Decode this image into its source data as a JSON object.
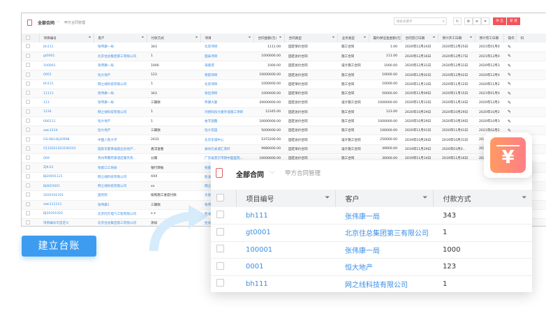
{
  "main": {
    "title": "全部合同",
    "subtitle": "甲方合同管理",
    "search_placeholder": "搜索关键字",
    "export_label": "导 出",
    "new_label": "新 建",
    "columns": [
      "项目编号",
      "客户",
      "付款方式",
      "项目",
      "合同金额(元)",
      "合同类型",
      "业务类型",
      "履约保证金金额(元)",
      "合同签订日期",
      "预计开工日期",
      "预计完工日期",
      "操作",
      "扫"
    ],
    "rows": [
      [
        "bh111",
        "张伟康一局",
        "343",
        "北装项目",
        "1111.00",
        "固定单价合同",
        "施工合同",
        "1.00",
        "2020年12月24日",
        "2020年12月25日",
        "2021年01月0"
      ],
      [
        "gt0001",
        "北京住总集团第三有限公司",
        "1",
        "国泰项目",
        "1000000.00",
        "固定总价合同",
        "施工合同",
        "111.00",
        "2020年12月16日",
        "2020年12月17日",
        "2021年12月0"
      ],
      [
        "100001",
        "张伟康一局",
        "1000",
        "海底捞",
        "1000.00",
        "固定总价合同",
        "设计施工合同",
        "1000.00",
        "2020年12月31日",
        "2020年12月31日",
        "2020年12月3"
      ],
      [
        "0001",
        "恒大地产",
        "123",
        "南部项目",
        "10000000.00",
        "固定总价合同",
        "施工合同",
        "10000.00",
        "2020年12月02日",
        "2020年12月02日",
        "2020年12月0"
      ],
      [
        "bh111",
        "网之线科技有限公司",
        "1",
        "北装项目",
        "1000000.00",
        "固定单价合同",
        "施工合同",
        "10000.00",
        "2020年11月13日",
        "2020年11月12日",
        "2020年11月2"
      ],
      [
        "11111",
        "张伟康一局",
        "343",
        "张恒项目",
        "1000000.00",
        "固定单价合同",
        "施工合同",
        "50000.00",
        "2020年11月09日",
        "2020年11月15日",
        "2021年01月0"
      ],
      [
        "111",
        "张伟康一局",
        "三期款",
        "伟康大厦",
        "20000000.00",
        "固定总价合同",
        "设计施工合同",
        "1000000.00",
        "2020年11月12日",
        "2020年11月14日",
        "2020年12月2"
      ],
      [
        "1234",
        "网之线科技有限公司",
        "1",
        "鸿扬科技大厦外墙施工项目",
        "12345.00",
        "固定总价合同",
        "施工合同",
        "123.00",
        "2020年10月29日",
        "2020年10月29日",
        "2020年10月2"
      ],
      [
        "000111",
        "恒大地产",
        "1",
        "裕丰国鑫",
        "10000000.00",
        "固定总价合同",
        "施工合同",
        "1000000.00",
        "2020年10月29日",
        "2020年10月29日",
        "2020年10月3"
      ],
      [
        "zwk1234",
        "恒大地产",
        "三期款",
        "恒大花园",
        "5000000.00",
        "固定总价合同",
        "施工合同",
        "100000.00",
        "2020年11月01日",
        "2020年11月01日",
        "2021年02月2"
      ],
      [
        "GS-983-BJ30998",
        "中国人民大学",
        "2431",
        "北京东城中心",
        "5372200.00",
        "固定总价合同",
        "设计施工合同",
        "250000.00",
        "2019年10月26日",
        "2019年10月31日",
        "202"
      ],
      [
        "5115021503190101",
        "固安华夏幸福基业房地产…",
        "悬浮查看",
        "廊坊孔雀城汇景轩",
        "9980000.00",
        "固定单价合同",
        "设计施工合同",
        "49900.00",
        "2019年11月29日",
        "2020年03月0…",
        "202"
      ],
      [
        "009",
        "贵州帝都府豪酒店服务有…",
        "分期",
        "广东省普宁市新中医医院…",
        "10000000.00",
        "固定总价合同",
        "施工合同",
        "30000.00",
        "2019年11月14日",
        "2019年11月16日",
        "202"
      ],
      [
        "ZJK-01",
        "张家口工商局",
        "银行转账",
        "张家"
      ],
      [
        "BJ20001121",
        "网之线科技有限公司",
        "XXX",
        "赵凌"
      ],
      [
        "BJWZX001",
        "网之线科技有限公司",
        "xx",
        "网之"
      ],
      [
        "2020102101",
        "国务院",
        "按照施工进度付款",
        "天安"
      ],
      [
        "zwk111111",
        "张伟康1",
        "三期款",
        "张伟"
      ],
      [
        "BJ20201020",
        "北京同方电气工程有限公司",
        "x x",
        "赵凌"
      ],
      [
        "项目编号可自定义",
        "北京住总集团第三有限公司",
        "测试",
        "住总"
      ]
    ]
  },
  "overlay": {
    "title": "全部合同",
    "subtitle": "甲方合同管理",
    "columns": [
      "项目编号",
      "客户",
      "付款方式"
    ],
    "rows": [
      [
        "bh111",
        "张伟康一局",
        "343"
      ],
      [
        "gt0001",
        "北京住总集团第三有限公司",
        "1"
      ],
      [
        "100001",
        "张伟康一局",
        "1000"
      ],
      [
        "0001",
        "恒大地产",
        "123"
      ],
      [
        "bh111",
        "网之线科技有限公司",
        "1"
      ]
    ]
  },
  "badge": {
    "glyph": "¥",
    "icon": "yen-icon"
  },
  "cta": {
    "label": "建立台账"
  },
  "colors": {
    "accent": "#3d9cf0",
    "danger": "#f2545b",
    "link": "#3a8ee6"
  }
}
